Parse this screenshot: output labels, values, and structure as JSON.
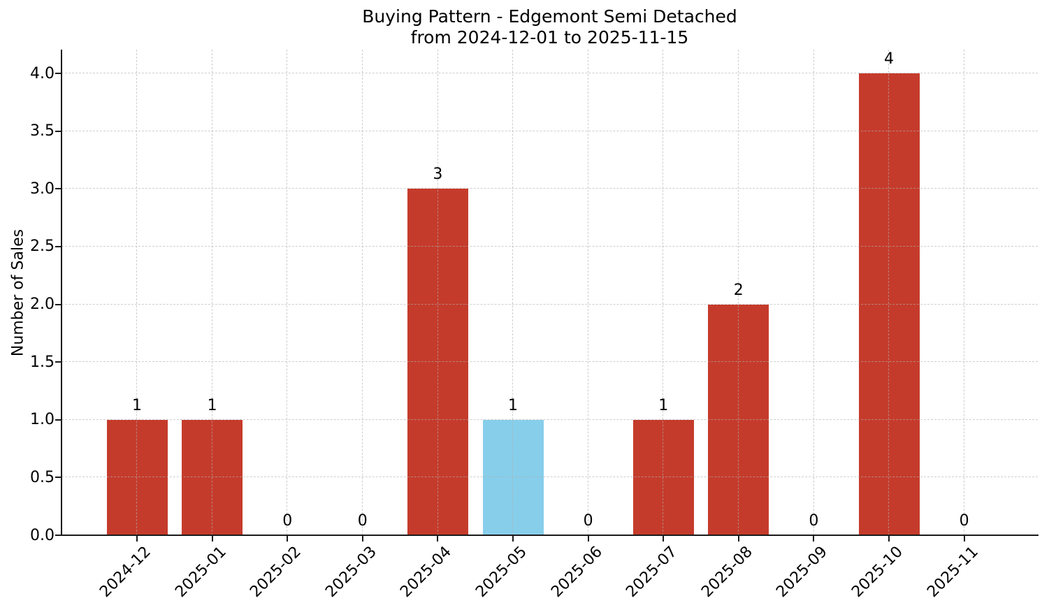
{
  "chart_data": {
    "type": "bar",
    "title": "Buying Pattern - Edgemont Semi Detached\nfrom 2024-12-01 to 2025-11-15",
    "xlabel": "",
    "ylabel": "Number of Sales",
    "categories": [
      "2024-12",
      "2025-01",
      "2025-02",
      "2025-03",
      "2025-04",
      "2025-05",
      "2025-06",
      "2025-07",
      "2025-08",
      "2025-09",
      "2025-10",
      "2025-11"
    ],
    "values": [
      1,
      1,
      0,
      0,
      3,
      1,
      0,
      1,
      2,
      0,
      4,
      0
    ],
    "bar_value_labels": [
      "1",
      "1",
      "0",
      "0",
      "3",
      "1",
      "0",
      "1",
      "2",
      "0",
      "4",
      "0"
    ],
    "highlight_index": 5,
    "colors": {
      "bar": "#c53b2b",
      "highlight_bar": "#87ceeb",
      "grid": "#b0b0b0",
      "axis": "#1a1a1a",
      "text": "#000000"
    },
    "ytick_labels": [
      "0.0",
      "0.5",
      "1.0",
      "1.5",
      "2.0",
      "2.5",
      "3.0",
      "3.5",
      "4.0"
    ],
    "ylim": [
      0,
      4.2
    ],
    "grid": true,
    "grid_style": "dashed",
    "legend": false
  }
}
